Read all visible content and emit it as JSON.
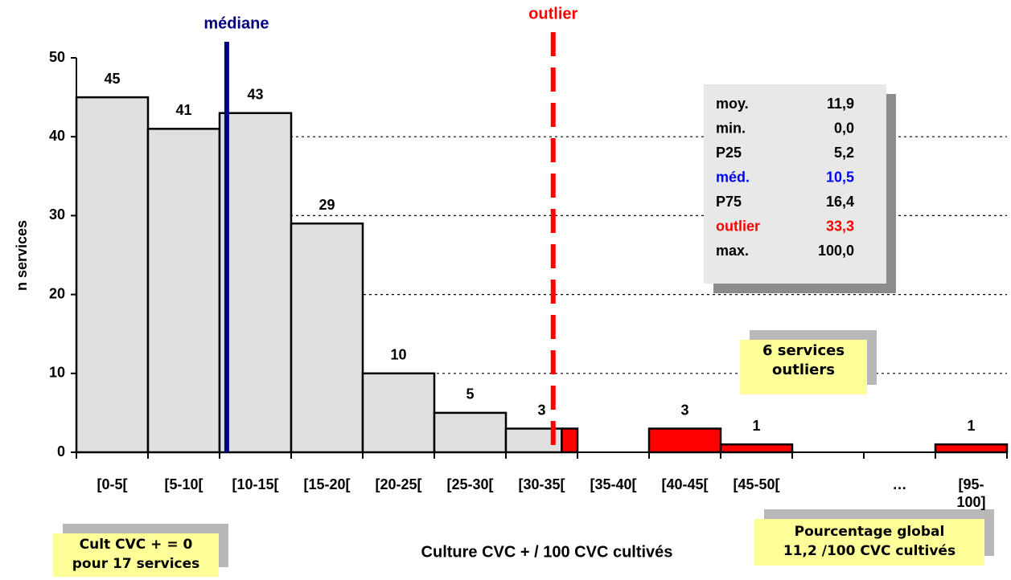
{
  "chart_data": {
    "type": "histogram",
    "categories": [
      "[0-5[",
      "[5-10[",
      "[10-15[",
      "[15-20[",
      "[20-25[",
      "[25-30[",
      "[30-35[",
      "[35-40[",
      "[40-45[",
      "[45-50[",
      null,
      "…",
      "[95-100]"
    ],
    "values": [
      45,
      41,
      43,
      29,
      10,
      5,
      3,
      0,
      3,
      1,
      0,
      0,
      1
    ],
    "value_labels": [
      "45",
      "41",
      "43",
      "29",
      "10",
      "5",
      "3",
      null,
      "3",
      "1",
      null,
      null,
      "1"
    ],
    "colors": [
      "#e0e0e0",
      "#e0e0e0",
      "#e0e0e0",
      "#e0e0e0",
      "#e0e0e0",
      "#e0e0e0",
      [
        "#e0e0e0",
        "#ff0000"
      ],
      "#e0e0e0",
      "#ff0000",
      "#ff0000",
      "#ff0000",
      "#ff0000",
      "#ff0000"
    ],
    "ylim": [
      0,
      50
    ],
    "yticks": [
      0,
      10,
      20,
      30,
      40,
      50
    ],
    "grid": true,
    "ylabel": "n services",
    "xlabel": "Culture CVC + / 100 CVC cultivés",
    "median_label": "médiane",
    "median_color": "#000080",
    "outlier_label": "outlier",
    "outlier_color": "#ff0000",
    "stats": [
      {
        "label": "moy.",
        "value": 11.9,
        "value_label": "11,9",
        "color": "#000000"
      },
      {
        "label": "min.",
        "value": 0.0,
        "value_label": "0,0",
        "color": "#000000"
      },
      {
        "label": "P25",
        "value": 5.2,
        "value_label": "5,2",
        "color": "#000000"
      },
      {
        "label": "méd.",
        "value": 10.5,
        "value_label": "10,5",
        "color": "#0000ff"
      },
      {
        "label": "P75",
        "value": 16.4,
        "value_label": "16,4",
        "color": "#000000"
      },
      {
        "label": "outlier",
        "value": 33.3,
        "value_label": "33,3",
        "color": "#ff0000"
      },
      {
        "label": "max.",
        "value": 100.0,
        "value_label": "100,0",
        "color": "#000000"
      }
    ],
    "annotations": [
      "6 services\noutliers",
      "Cult CVC + = 0\npour 17 services",
      "Pourcentage global\n11,2 /100 CVC cultivés"
    ]
  }
}
